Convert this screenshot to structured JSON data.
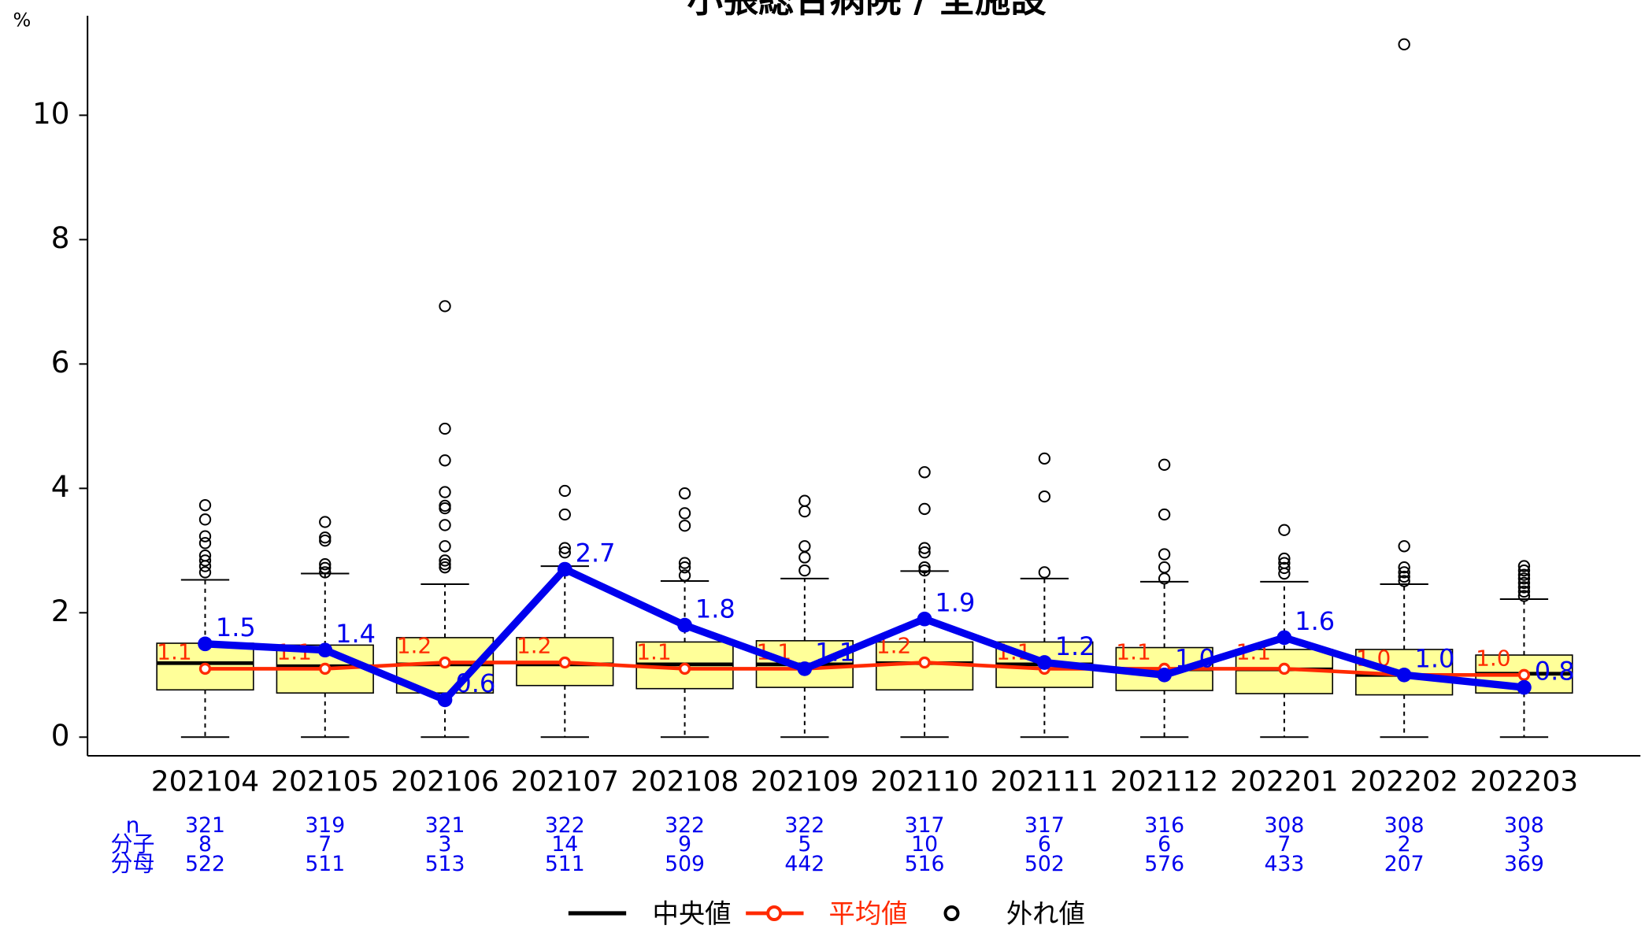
{
  "chart_data": {
    "type": "box",
    "title": "小張総合病院 / 全施設",
    "y_label": "%",
    "categories": [
      "202104",
      "202105",
      "202106",
      "202107",
      "202108",
      "202109",
      "202110",
      "202111",
      "202112",
      "202201",
      "202202",
      "202203"
    ],
    "ylim": [
      -0.3,
      11.6
    ],
    "yticks": [
      0,
      2,
      4,
      6,
      8,
      10
    ],
    "box_color": "#ffff99",
    "boxes": [
      {
        "low": 0,
        "q1": 0.76,
        "median": 1.19,
        "q3": 1.51,
        "high": 2.53,
        "outliers": [
          3.73,
          3.5,
          3.23,
          3.12,
          2.92,
          2.84,
          2.75,
          2.65
        ]
      },
      {
        "low": 0,
        "q1": 0.71,
        "median": 1.14,
        "q3": 1.48,
        "high": 2.63,
        "outliers": [
          3.46,
          3.21,
          3.16,
          2.78,
          2.72,
          2.65
        ]
      },
      {
        "low": 0,
        "q1": 0.71,
        "median": 1.17,
        "q3": 1.6,
        "high": 2.46,
        "outliers": [
          6.93,
          4.96,
          4.45,
          3.94,
          3.72,
          3.68,
          3.41,
          3.07,
          2.84,
          2.78,
          2.73
        ]
      },
      {
        "low": 0,
        "q1": 0.83,
        "median": 1.17,
        "q3": 1.6,
        "high": 2.75,
        "outliers": [
          3.96,
          3.58,
          3.04,
          2.97
        ]
      },
      {
        "low": 0,
        "q1": 0.78,
        "median": 1.17,
        "q3": 1.53,
        "high": 2.51,
        "outliers": [
          3.92,
          3.6,
          3.4,
          2.8,
          2.73,
          2.6
        ]
      },
      {
        "low": 0,
        "q1": 0.8,
        "median": 1.17,
        "q3": 1.55,
        "high": 2.55,
        "outliers": [
          3.8,
          3.63,
          3.07,
          2.89,
          2.68
        ]
      },
      {
        "low": 0,
        "q1": 0.76,
        "median": 1.19,
        "q3": 1.53,
        "high": 2.67,
        "outliers": [
          4.26,
          3.67,
          3.04,
          2.97,
          2.73,
          2.68
        ]
      },
      {
        "low": 0,
        "q1": 0.8,
        "median": 1.17,
        "q3": 1.53,
        "high": 2.55,
        "outliers": [
          4.48,
          3.87,
          2.65
        ]
      },
      {
        "low": 0,
        "q1": 0.75,
        "median": 1.09,
        "q3": 1.44,
        "high": 2.5,
        "outliers": [
          4.38,
          3.58,
          2.94,
          2.73,
          2.55
        ]
      },
      {
        "low": 0,
        "q1": 0.7,
        "median": 1.09,
        "q3": 1.41,
        "high": 2.5,
        "outliers": [
          3.33,
          2.87,
          2.8,
          2.72,
          2.63
        ]
      },
      {
        "low": 0,
        "q1": 0.68,
        "median": 1.0,
        "q3": 1.41,
        "high": 2.46,
        "outliers": [
          11.14,
          3.07,
          2.73,
          2.65,
          2.58,
          2.51
        ]
      },
      {
        "low": 0,
        "q1": 0.71,
        "median": 1.02,
        "q3": 1.32,
        "high": 2.22,
        "outliers": [
          2.75,
          2.68,
          2.61,
          2.55,
          2.48,
          2.41,
          2.34,
          2.27
        ]
      }
    ],
    "series": [
      {
        "name": "平均値",
        "color": "#ff2a00",
        "values": [
          1.1,
          1.1,
          1.2,
          1.2,
          1.1,
          1.1,
          1.2,
          1.1,
          1.1,
          1.1,
          1.0,
          1.0
        ],
        "value_labels": [
          "1.1",
          "1.1",
          "1.2",
          "1.2",
          "1.1",
          "1.1",
          "1.2",
          "1.1",
          "1.1",
          "1.1",
          "1.0",
          "1.0"
        ]
      },
      {
        "color": "#0000ee",
        "values": [
          1.5,
          1.4,
          0.6,
          2.7,
          1.8,
          1.1,
          1.9,
          1.2,
          1.0,
          1.6,
          1.0,
          0.8
        ],
        "value_labels": [
          "1.5",
          "1.4",
          "0.6",
          "2.7",
          "1.8",
          "1.1",
          "1.9",
          "1.2",
          "1.0",
          "1.6",
          "1.0",
          "0.8"
        ]
      }
    ],
    "legend": {
      "median": "中央値",
      "mean": "平均値",
      "outlier": "外れ値"
    },
    "table": {
      "row_labels": [
        "n",
        "分子",
        "分母"
      ],
      "rows": [
        [
          321,
          319,
          321,
          322,
          322,
          322,
          317,
          317,
          316,
          308,
          308,
          308
        ],
        [
          8,
          7,
          3,
          14,
          9,
          5,
          10,
          6,
          6,
          7,
          2,
          3
        ],
        [
          522,
          511,
          513,
          511,
          509,
          442,
          516,
          502,
          576,
          433,
          207,
          369
        ]
      ]
    }
  }
}
